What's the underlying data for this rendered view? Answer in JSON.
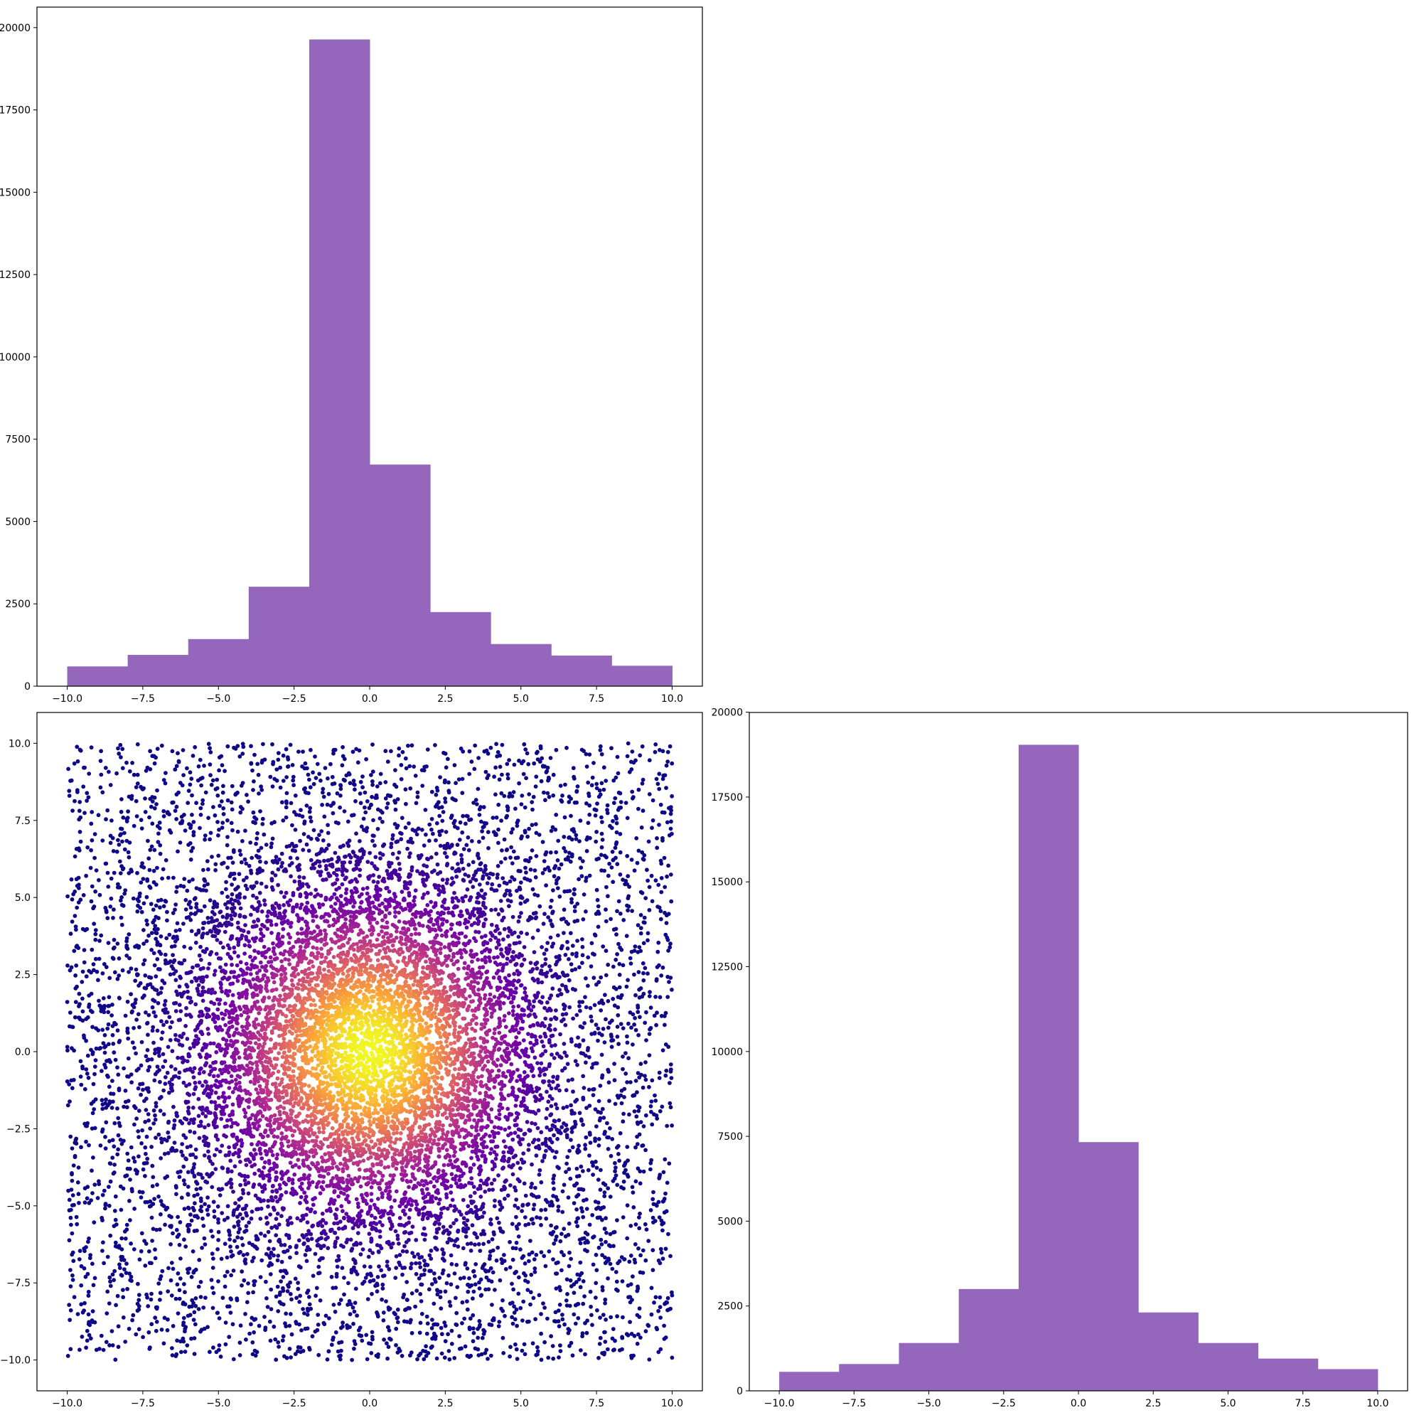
{
  "chart_data": [
    {
      "type": "bar",
      "panel": "top-left histogram",
      "bin_edges": [
        -10,
        -8,
        -6,
        -4,
        -2,
        0,
        2,
        4,
        6,
        8,
        10
      ],
      "values": [
        600,
        950,
        1430,
        3020,
        19640,
        6730,
        2250,
        1280,
        930,
        620
      ],
      "color": "#9467bd",
      "xlim": [
        -11,
        11
      ],
      "ylim": [
        0,
        20622
      ],
      "xticks": [
        -10,
        -7.5,
        -5,
        -2.5,
        0,
        2.5,
        5,
        7.5,
        10
      ],
      "xtick_labels": [
        "−10.0",
        "−7.5",
        "−5.0",
        "−2.5",
        "0.0",
        "2.5",
        "5.0",
        "7.5",
        "10.0"
      ],
      "yticks": [
        0,
        2500,
        5000,
        7500,
        10000,
        12500,
        15000,
        17500,
        20000
      ],
      "ytick_labels": [
        "0",
        "2500",
        "5000",
        "7500",
        "10000",
        "12500",
        "15000",
        "17500",
        "20000"
      ],
      "grid": false
    },
    {
      "type": "scatter",
      "panel": "bottom-left density scatter",
      "description_of_points": "uniformly spread points over [-10,10]x[-10,10] plus a dense cluster at the origin, colored by density (plasma colormap: dark indigo low density to yellow high density)",
      "x_range": [
        -10,
        10
      ],
      "y_range": [
        -10,
        10
      ],
      "density_center": [
        0,
        0
      ],
      "colormap": [
        "#0d0887",
        "#6a00a8",
        "#b12a90",
        "#e16462",
        "#fca636",
        "#f0f921"
      ],
      "xlim": [
        -11,
        11
      ],
      "ylim": [
        -11,
        11
      ],
      "xticks": [
        -10,
        -7.5,
        -5,
        -2.5,
        0,
        2.5,
        5,
        7.5,
        10
      ],
      "xtick_labels": [
        "−10.0",
        "−7.5",
        "−5.0",
        "−2.5",
        "0.0",
        "2.5",
        "5.0",
        "7.5",
        "10.0"
      ],
      "yticks": [
        -10,
        -7.5,
        -5,
        -2.5,
        0,
        2.5,
        5,
        7.5,
        10
      ],
      "ytick_labels": [
        "−10.0",
        "−7.5",
        "−5.0",
        "−2.5",
        "0.0",
        "2.5",
        "5.0",
        "7.5",
        "10.0"
      ],
      "grid": false
    },
    {
      "type": "bar",
      "panel": "bottom-right histogram",
      "bin_edges": [
        -10,
        -8,
        -6,
        -4,
        -2,
        0,
        2,
        4,
        6,
        8,
        10
      ],
      "values": [
        560,
        790,
        1410,
        3000,
        19040,
        7330,
        2310,
        1410,
        950,
        640
      ],
      "color": "#9467bd",
      "xlim": [
        -11,
        11
      ],
      "ylim": [
        0,
        19992
      ],
      "xticks": [
        -10,
        -7.5,
        -5,
        -2.5,
        0,
        2.5,
        5,
        7.5,
        10
      ],
      "xtick_labels": [
        "−10.0",
        "−7.5",
        "−5.0",
        "−2.5",
        "0.0",
        "2.5",
        "5.0",
        "7.5",
        "10.0"
      ],
      "yticks": [
        0,
        2500,
        5000,
        7500,
        10000,
        12500,
        15000,
        17500,
        20000
      ],
      "ytick_labels": [
        "0",
        "2500",
        "5000",
        "7500",
        "10000",
        "12500",
        "15000",
        "17500",
        "20000"
      ],
      "grid": false
    }
  ]
}
